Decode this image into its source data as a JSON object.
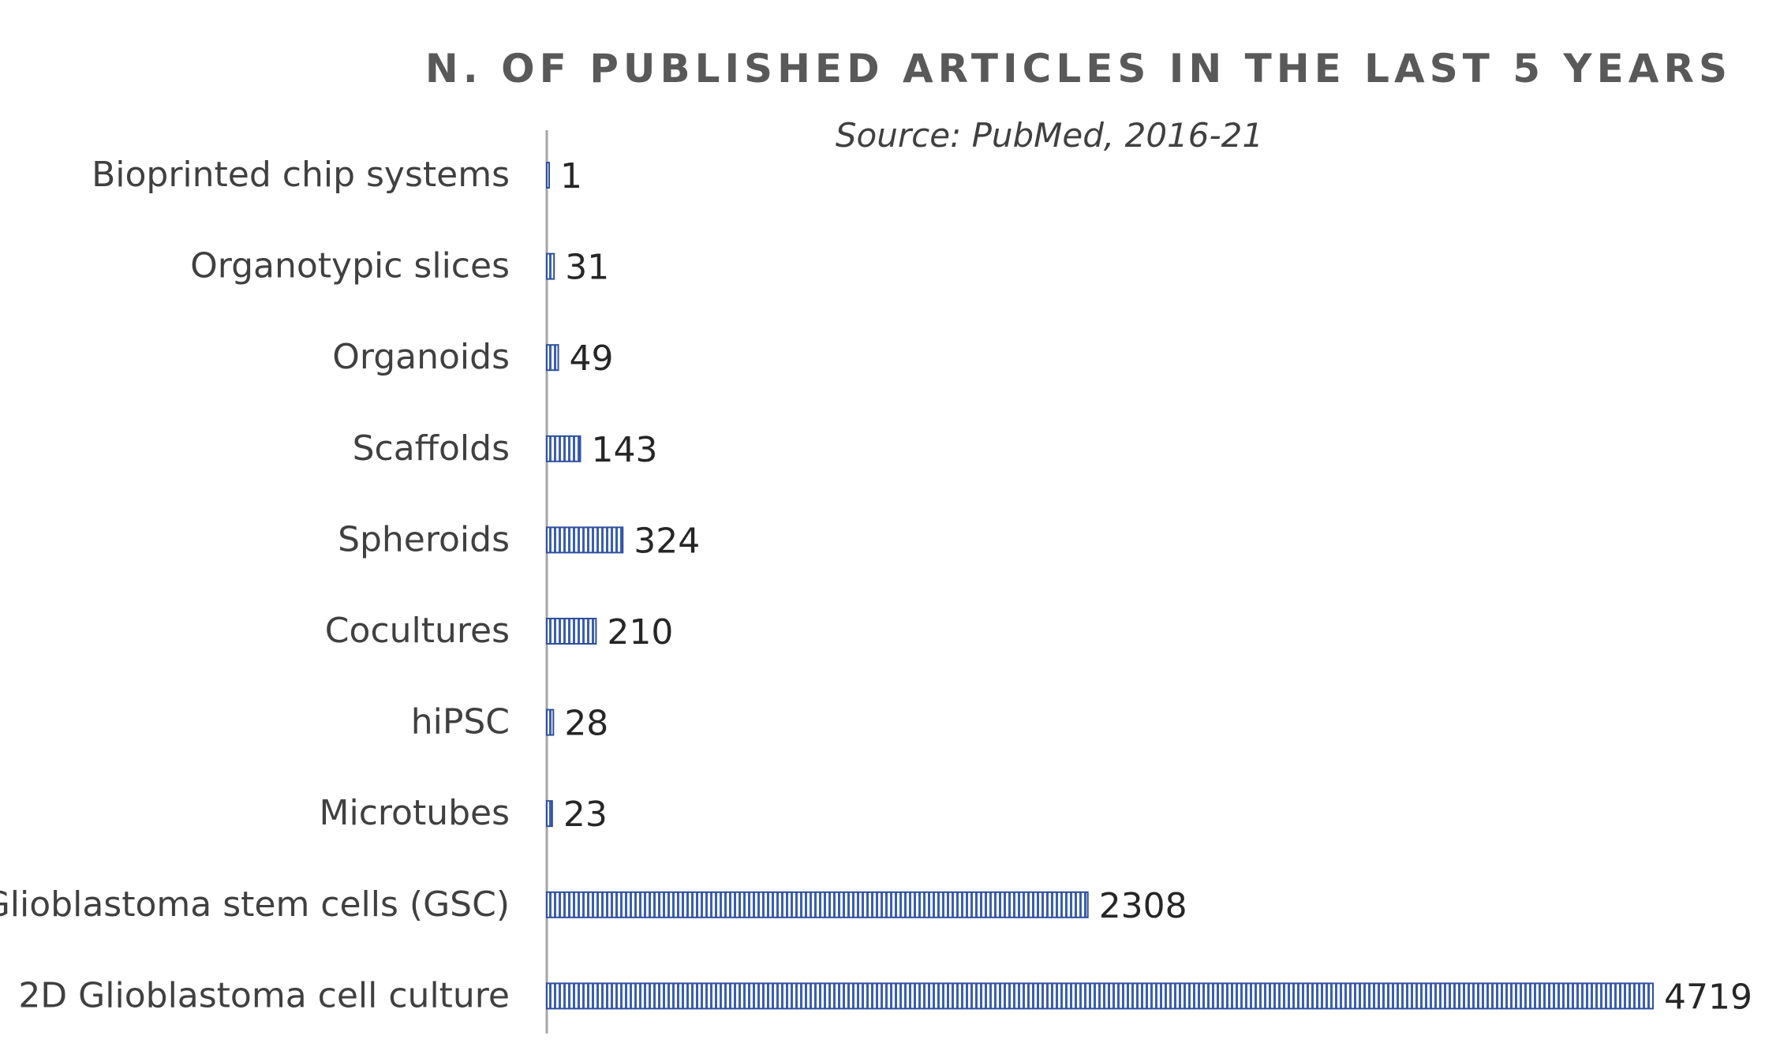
{
  "chart_data": {
    "type": "bar",
    "orientation": "horizontal",
    "title": "N. OF PUBLISHED ARTICLES IN THE LAST 5 YEARS",
    "subtitle": "Source: PubMed, 2016-21",
    "categories": [
      "Bioprinted chip systems",
      "Organotypic slices",
      "Organoids",
      "Scaffolds",
      "Spheroids",
      "Cocultures",
      "hiPSC",
      "Microtubes",
      "Glioblastoma stem cells (GSC)",
      "2D Glioblastoma cell culture"
    ],
    "values": [
      1,
      31,
      49,
      143,
      324,
      210,
      28,
      23,
      2308,
      4719
    ],
    "value_labels": [
      "1",
      "31",
      "49",
      "143",
      "324",
      "210",
      "28",
      "23",
      "2308",
      "4719"
    ],
    "xlim": [
      0,
      4719
    ],
    "grid": false,
    "data_labels": true,
    "bar_fill": "vertical-hatch",
    "colors": {
      "bar_stroke": "#2f4f9e",
      "bar_hatch": "#3a5fb0",
      "bar_background": "#ffffff",
      "axis": "#a6a6a6"
    }
  }
}
